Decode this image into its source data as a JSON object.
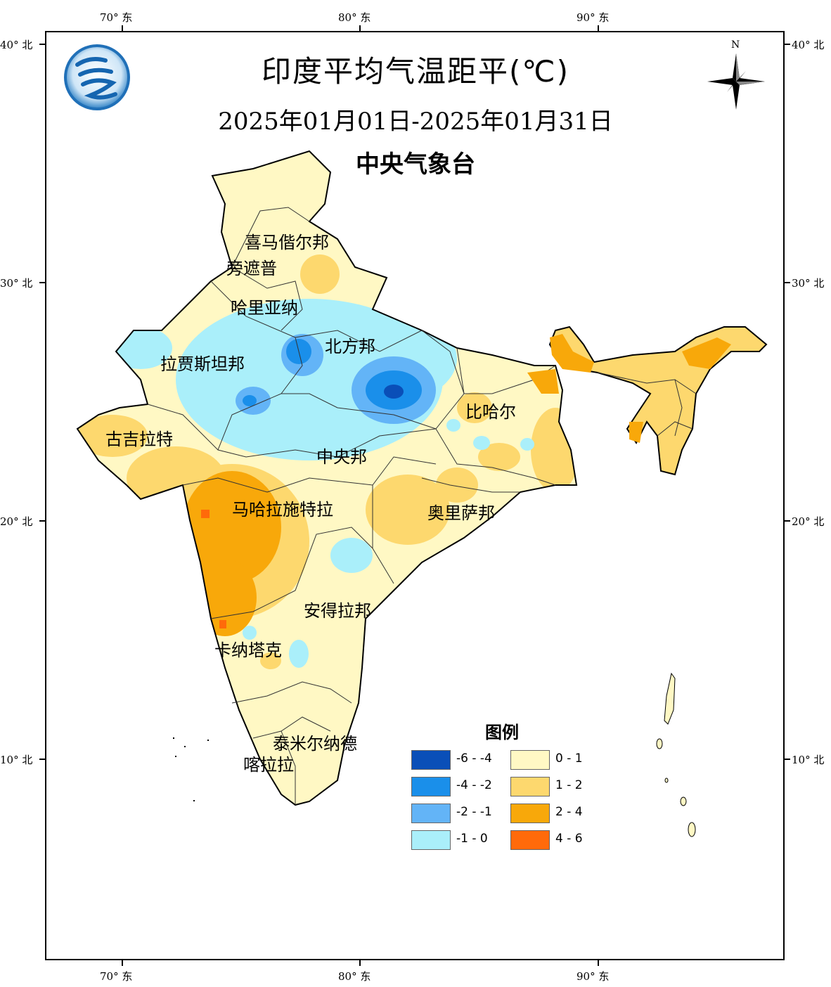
{
  "title": "印度平均气温距平(℃)",
  "subtitle": "2025年01月01日-2025年01月31日",
  "org": "中央气象台",
  "axes": {
    "top": [
      "70° 东",
      "80° 东",
      "90° 东"
    ],
    "bottom": [
      "70° 东",
      "80° 东",
      "90° 东"
    ],
    "left": [
      "40° 北",
      "30° 北",
      "20° 北",
      "10° 北"
    ],
    "right": [
      "40° 北",
      "30° 北",
      "20° 北",
      "10° 北"
    ]
  },
  "compass": {
    "label": "N"
  },
  "states": [
    "喜马偕尔邦",
    "旁遮普",
    "哈里亚纳",
    "北方邦",
    "拉贾斯坦邦",
    "古吉拉特",
    "中央邦",
    "比哈尔",
    "马哈拉施特拉",
    "奥里萨邦",
    "安得拉邦",
    "卡纳塔克",
    "泰米尔纳德",
    "喀拉拉"
  ],
  "legend": {
    "title": "图例",
    "items": [
      {
        "label": "-6 - -4",
        "color": "#0a4fb8"
      },
      {
        "label": "-4 - -2",
        "color": "#1a8fea"
      },
      {
        "label": "-2 - -1",
        "color": "#63b4f7"
      },
      {
        "label": "-1 - 0",
        "color": "#aaeffa"
      },
      {
        "label": "0 - 1",
        "color": "#fff8c4"
      },
      {
        "label": "1 - 2",
        "color": "#fdd86e"
      },
      {
        "label": "2 - 4",
        "color": "#f8a80a"
      },
      {
        "label": "4 - 6",
        "color": "#ff6a0a"
      }
    ]
  }
}
